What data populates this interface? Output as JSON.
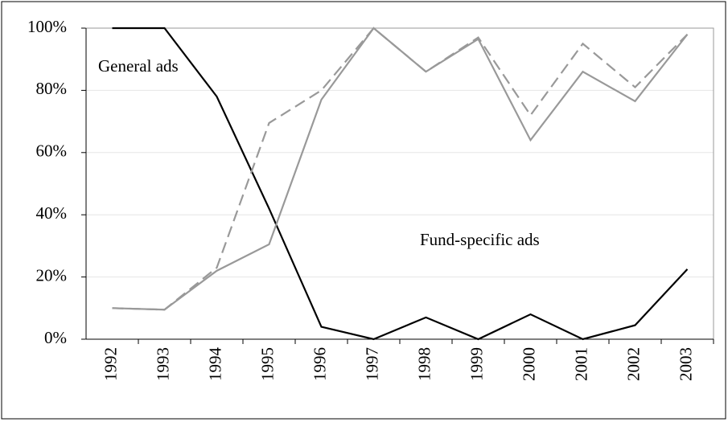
{
  "chart_data": {
    "type": "line",
    "categories": [
      "1992",
      "1993",
      "1994",
      "1995",
      "1996",
      "1997",
      "1998",
      "1999",
      "2000",
      "2001",
      "2002",
      "2003"
    ],
    "series": [
      {
        "color": "#000000",
        "line_style": "solid",
        "values": [
          100,
          100,
          78,
          42,
          4,
          0,
          7,
          0,
          8,
          0,
          4.5,
          22.5
        ]
      },
      {
        "color": "#999999",
        "line_style": "solid",
        "values": [
          10,
          9.5,
          22,
          30.5,
          77,
          100,
          86,
          96.5,
          64,
          86,
          76.5,
          98
        ]
      },
      {
        "color": "#999999",
        "line_style": "dashed",
        "values": [
          10,
          9.5,
          23,
          69.5,
          80,
          100,
          86,
          97,
          72,
          95,
          81,
          98
        ]
      }
    ],
    "ylim": [
      0,
      100
    ],
    "yticks": [
      {
        "value": 0,
        "label": "0%"
      },
      {
        "value": 20,
        "label": "20%"
      },
      {
        "value": 40,
        "label": "40%"
      },
      {
        "value": 60,
        "label": "60%"
      },
      {
        "value": 80,
        "label": "80%"
      },
      {
        "value": 100,
        "label": "100%"
      }
    ],
    "grid": true,
    "annotations": [
      "General ads",
      "Fund-specific ads"
    ]
  }
}
